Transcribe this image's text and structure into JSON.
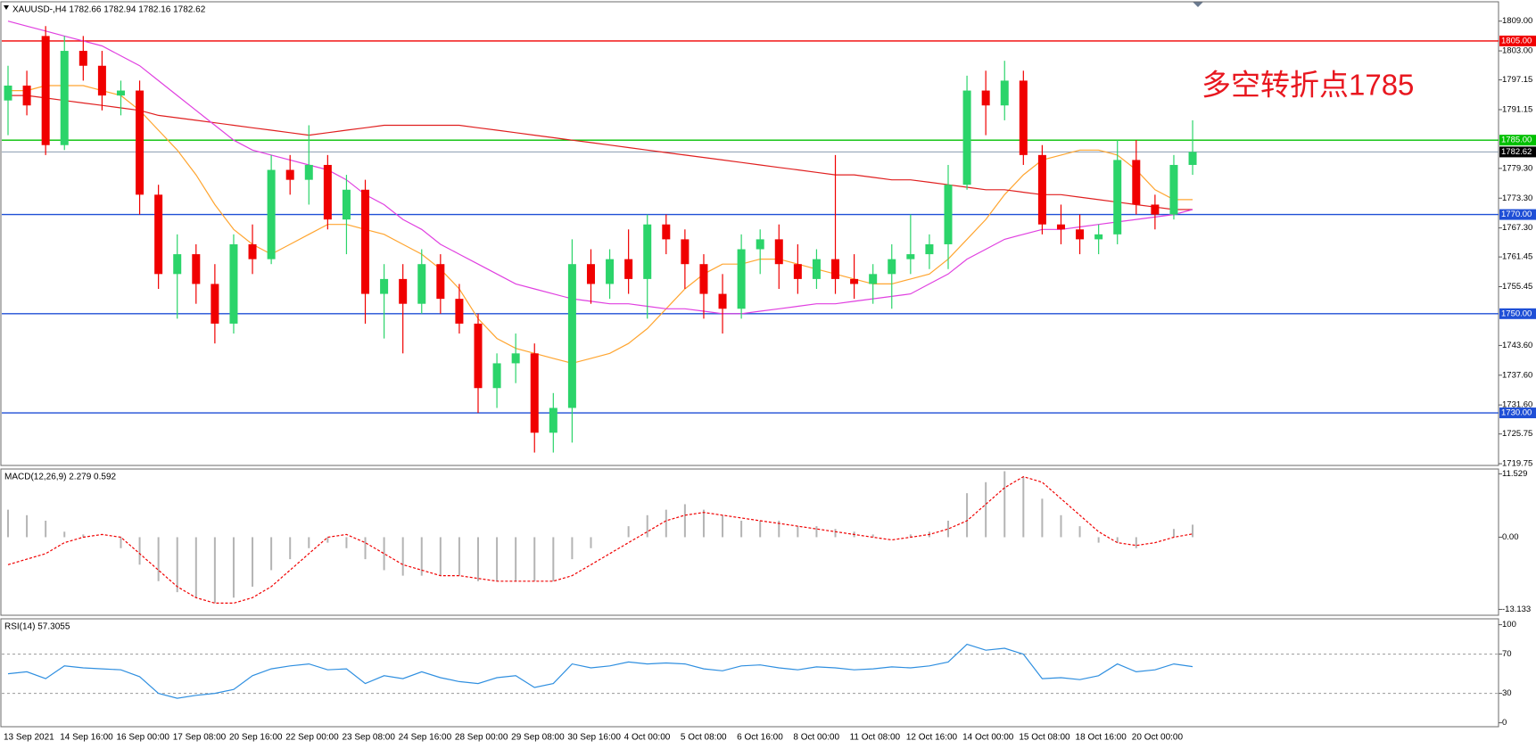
{
  "chart_data": [
    {
      "type": "candlestick",
      "title": "XAUUSD-,H4  1782.66 1782.94 1782.16 1782.62",
      "annotation": "多空转折点1785",
      "categories": [
        "13 Sep 2021",
        null,
        null,
        "14 Sep 16:00",
        null,
        null,
        "16 Sep 00:00",
        null,
        null,
        "17 Sep 08:00",
        null,
        null,
        "20 Sep 16:00",
        null,
        null,
        "22 Sep 00:00",
        null,
        null,
        "23 Sep 08:00",
        null,
        null,
        "24 Sep 16:00",
        null,
        null,
        "28 Sep 00:00",
        null,
        null,
        "29 Sep 08:00",
        null,
        null,
        "30 Sep 16:00",
        null,
        null,
        "4 Oct 00:00",
        null,
        null,
        "5 Oct 08:00",
        null,
        null,
        "6 Oct 16:00",
        null,
        null,
        "8 Oct 00:00",
        null,
        null,
        "11 Oct 08:00",
        null,
        null,
        "12 Oct 16:00",
        null,
        null,
        "14 Oct 00:00",
        null,
        null,
        "15 Oct 08:00",
        null,
        null,
        "18 Oct 16:00",
        null,
        null,
        "20 Oct 00:00",
        null,
        null,
        null
      ],
      "open": [
        1793,
        1796,
        1806,
        1784,
        1803,
        1800,
        1794,
        1795,
        1774,
        1758,
        1762,
        1756,
        1748,
        1764,
        1761,
        1779,
        1777,
        1780,
        1769,
        1775,
        1754,
        1757,
        1752,
        1760,
        1753,
        1748,
        1735,
        1740,
        1742,
        1726,
        1731,
        1760,
        1756,
        1761,
        1757,
        1768,
        1765,
        1760,
        1754,
        1751,
        1763,
        1765,
        1760,
        1757,
        1761,
        1757,
        1756,
        1758,
        1761,
        1762,
        1764,
        1776,
        1795,
        1792,
        1797,
        1782,
        1768,
        1767,
        1765,
        1766,
        1781,
        1772,
        1770,
        1780
      ],
      "high": [
        1800,
        1799,
        1808,
        1806,
        1806,
        1803,
        1797,
        1797,
        1776,
        1766,
        1764,
        1760,
        1766,
        1768,
        1782,
        1782,
        1788,
        1782,
        1778,
        1777,
        1760,
        1760,
        1763,
        1762,
        1756,
        1750,
        1742,
        1746,
        1744,
        1734,
        1765,
        1763,
        1763,
        1767,
        1770,
        1770,
        1767,
        1762,
        1758,
        1766,
        1767,
        1768,
        1764,
        1763,
        1782,
        1762,
        1760,
        1764,
        1770,
        1766,
        1780,
        1798,
        1799,
        1801,
        1799,
        1784,
        1772,
        1770,
        1768,
        1785,
        1785,
        1774,
        1782,
        1789
      ],
      "low": [
        1786,
        1790,
        1782,
        1783,
        1797,
        1791,
        1790,
        1770,
        1755,
        1749,
        1752,
        1744,
        1746,
        1758,
        1760,
        1774,
        1772,
        1767,
        1762,
        1748,
        1745,
        1742,
        1750,
        1750,
        1746,
        1730,
        1731,
        1736,
        1722,
        1722,
        1724,
        1752,
        1753,
        1754,
        1749,
        1762,
        1755,
        1749,
        1746,
        1749,
        1758,
        1755,
        1754,
        1755,
        1754,
        1753,
        1752,
        1751,
        1758,
        1759,
        1759,
        1775,
        1786,
        1789,
        1780,
        1766,
        1764,
        1762,
        1762,
        1764,
        1770,
        1767,
        1769,
        1778
      ],
      "close": [
        1796,
        1792,
        1784,
        1803,
        1800,
        1794,
        1795,
        1774,
        1758,
        1762,
        1756,
        1748,
        1764,
        1761,
        1779,
        1777,
        1780,
        1769,
        1775,
        1754,
        1757,
        1752,
        1760,
        1753,
        1748,
        1735,
        1740,
        1742,
        1726,
        1731,
        1760,
        1756,
        1761,
        1757,
        1768,
        1765,
        1760,
        1754,
        1751,
        1763,
        1765,
        1760,
        1757,
        1761,
        1757,
        1756,
        1758,
        1761,
        1762,
        1764,
        1776,
        1795,
        1792,
        1797,
        1782,
        1768,
        1767,
        1765,
        1766,
        1781,
        1772,
        1770,
        1780,
        1782.62
      ],
      "up_color": "#2bd46a",
      "down_color": "#f00000",
      "series": [
        {
          "color": "#ffa530",
          "values": [
            1795,
            1795,
            1796,
            1796,
            1796,
            1795,
            1794,
            1791,
            1787,
            1783,
            1778,
            1772,
            1767,
            1764,
            1762,
            1764,
            1766,
            1768,
            1768,
            1767,
            1766,
            1764,
            1762,
            1759,
            1755,
            1749,
            1745,
            1743,
            1742,
            1741,
            1740,
            1741,
            1742,
            1744,
            1747,
            1751,
            1755,
            1758,
            1760,
            1760,
            1761,
            1761,
            1760,
            1759,
            1758,
            1757,
            1756,
            1756,
            1757,
            1758,
            1761,
            1765,
            1769,
            1774,
            1778,
            1781,
            1782,
            1783,
            1783,
            1782,
            1779,
            1775,
            1773,
            1773
          ]
        },
        {
          "color": "#e02020",
          "values": [
            1794,
            1794,
            1793.5,
            1793,
            1792.5,
            1792,
            1791.5,
            1791,
            1790,
            1789.5,
            1789,
            1788.5,
            1788,
            1787.5,
            1787,
            1786.5,
            1786,
            1786.5,
            1787,
            1787.5,
            1788,
            1788,
            1788,
            1788,
            1788,
            1787.5,
            1787,
            1786.5,
            1786,
            1785.5,
            1785,
            1784.5,
            1784,
            1783.5,
            1783,
            1782.5,
            1782,
            1781.5,
            1781,
            1780.5,
            1780,
            1779.5,
            1779,
            1778.5,
            1778,
            1778,
            1777.5,
            1777,
            1777,
            1776.5,
            1776,
            1775.5,
            1775,
            1775,
            1774.5,
            1774,
            1774,
            1773.5,
            1773,
            1772.5,
            1772,
            1771.5,
            1771,
            1771
          ]
        },
        {
          "color": "#e040e0",
          "values": [
            1809,
            1808,
            1807,
            1806,
            1805,
            1804,
            1802,
            1800,
            1797,
            1794,
            1791,
            1788,
            1785,
            1783,
            1782,
            1781,
            1780,
            1779,
            1777,
            1774,
            1772,
            1769,
            1767,
            1764,
            1762,
            1760,
            1758,
            1756,
            1755,
            1754,
            1753,
            1752.5,
            1752,
            1752,
            1751.5,
            1751,
            1751,
            1750.5,
            1750,
            1750,
            1750.5,
            1751,
            1751.5,
            1752,
            1752,
            1752.5,
            1753,
            1753.5,
            1754,
            1756,
            1758,
            1761,
            1763,
            1765,
            1766,
            1767,
            1767,
            1767.5,
            1768,
            1768.5,
            1769,
            1769.5,
            1770,
            1771
          ]
        }
      ],
      "levels": [
        {
          "value": 1805,
          "label": "1805.00",
          "color": "#f00000"
        },
        {
          "value": 1785,
          "label": "1785.00",
          "color": "#00c000"
        },
        {
          "value": 1770,
          "label": "1770.00",
          "color": "#1f4fd6"
        },
        {
          "value": 1750,
          "label": "1750.00",
          "color": "#1f4fd6"
        },
        {
          "value": 1730,
          "label": "1730.00",
          "color": "#1f4fd6"
        }
      ],
      "last_price": {
        "value": 1782.62,
        "label": "1782.62"
      },
      "ylim": [
        1719.4,
        1812.9
      ],
      "yticks": [
        {
          "value": 1809,
          "label": "1809.00"
        },
        {
          "value": 1803,
          "label": "1803.00"
        },
        {
          "value": 1797.15,
          "label": "1797.15"
        },
        {
          "value": 1791.15,
          "label": "1791.15"
        },
        {
          "value": 1779.3,
          "label": "1779.30"
        },
        {
          "value": 1773.3,
          "label": "1773.30"
        },
        {
          "value": 1767.3,
          "label": "1767.30"
        },
        {
          "value": 1761.45,
          "label": "1761.45"
        },
        {
          "value": 1755.45,
          "label": "1755.45"
        },
        {
          "value": 1743.6,
          "label": "1743.60"
        },
        {
          "value": 1737.6,
          "label": "1737.60"
        },
        {
          "value": 1731.6,
          "label": "1731.60"
        },
        {
          "value": 1725.75,
          "label": "1725.75"
        },
        {
          "value": 1719.75,
          "label": "1719.75"
        }
      ]
    },
    {
      "type": "macd",
      "title": "MACD(12,26,9) 2.279 0.592",
      "series": [
        {
          "style": "histogram",
          "color": "#b4b4b4",
          "values": [
            5,
            4,
            3,
            1,
            0.5,
            0,
            -2,
            -5,
            -8,
            -10,
            -11,
            -12,
            -11,
            -9,
            -6,
            -4,
            -2,
            -1,
            -2,
            -4,
            -6,
            -7,
            -7,
            -7,
            -7,
            -8,
            -8,
            -8,
            -8,
            -8,
            -4,
            -2,
            0,
            2,
            4,
            5,
            6,
            5,
            4,
            3,
            3,
            3,
            2,
            2,
            1.5,
            1,
            0.5,
            0,
            0.5,
            1,
            3,
            8,
            10,
            12,
            11,
            7,
            4,
            2,
            -1,
            -1,
            -2,
            0,
            1.5,
            2.279
          ]
        },
        {
          "style": "dashed",
          "color": "#f00000",
          "values": [
            -5,
            -4,
            -3,
            -1,
            0,
            0.5,
            0,
            -3,
            -6,
            -9,
            -11,
            -12,
            -12,
            -11,
            -9,
            -6,
            -3,
            0,
            0.5,
            -1,
            -3,
            -5,
            -6,
            -7,
            -7,
            -7.5,
            -8,
            -8,
            -8,
            -8,
            -7,
            -5,
            -3,
            -1,
            1,
            3,
            4,
            4.5,
            4,
            3.5,
            3,
            2.5,
            2,
            1.5,
            1,
            0.5,
            0,
            -0.5,
            0,
            0.5,
            1.5,
            3,
            6,
            9,
            11,
            10,
            7,
            4,
            1,
            -1,
            -1.5,
            -1,
            0,
            0.592
          ]
        }
      ],
      "ylim": [
        -14.2,
        12.4
      ],
      "yticks": [
        11.529,
        {
          "value": 0,
          "label": "0.00"
        },
        -13.133
      ]
    },
    {
      "type": "line",
      "title": "RSI(14) 57.3055",
      "series": [
        {
          "color": "#2f8fe0",
          "values": [
            50,
            52,
            45,
            58,
            56,
            55,
            54,
            47,
            30,
            25,
            28,
            30,
            34,
            48,
            55,
            58,
            60,
            54,
            55,
            40,
            48,
            45,
            52,
            46,
            42,
            40,
            46,
            48,
            36,
            40,
            60,
            56,
            58,
            62,
            60,
            61,
            60,
            55,
            53,
            58,
            59,
            56,
            54,
            57,
            56,
            54,
            55,
            57,
            56,
            58,
            62,
            80,
            74,
            76,
            70,
            45,
            46,
            44,
            48,
            60,
            52,
            54,
            60,
            57.3055
          ]
        }
      ],
      "levels": [
        70,
        30
      ],
      "ylim": [
        -4,
        106
      ],
      "yticks": [
        100,
        70,
        30,
        0
      ]
    }
  ]
}
